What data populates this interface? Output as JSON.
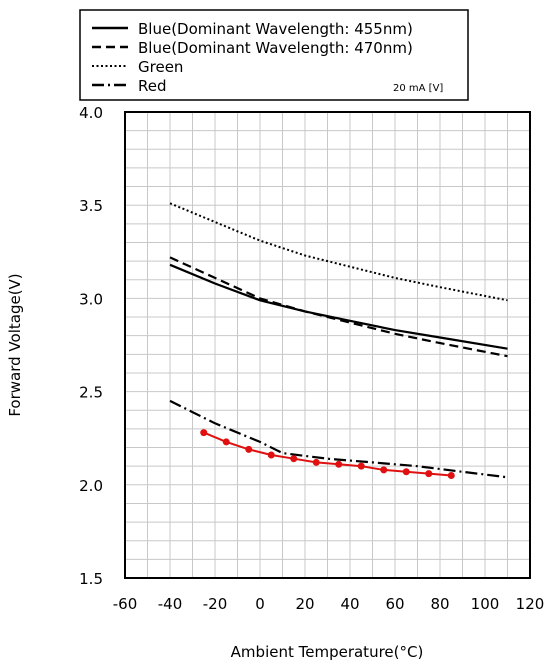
{
  "chart_data": {
    "type": "line",
    "xlabel": "Ambient Temperature(°C)",
    "ylabel": "Forward Voltage(V)",
    "xlim": [
      -60,
      120
    ],
    "ylim": [
      1.5,
      4.0
    ],
    "x_ticks": [
      "-60",
      "-40",
      "-20",
      "0",
      "20",
      "40",
      "60",
      "80",
      "100",
      "120"
    ],
    "y_ticks": [
      "1.5",
      "2.0",
      "2.5",
      "3.0",
      "3.5",
      "4.0"
    ],
    "grid": true,
    "legend_position": "top",
    "legend_note": "20 mA [V]",
    "series": [
      {
        "name": "Blue(Dominant Wavelength: 455nm)",
        "style": "solid",
        "color": "#000000",
        "x": [
          -40,
          -20,
          0,
          20,
          40,
          60,
          80,
          110
        ],
        "y": [
          3.18,
          3.08,
          2.99,
          2.93,
          2.88,
          2.83,
          2.79,
          2.73
        ]
      },
      {
        "name": "Blue(Dominant Wavelength: 470nm)",
        "style": "dashed",
        "color": "#000000",
        "x": [
          -40,
          -20,
          0,
          20,
          40,
          60,
          80,
          110
        ],
        "y": [
          3.22,
          3.11,
          3.0,
          2.93,
          2.87,
          2.81,
          2.76,
          2.69
        ]
      },
      {
        "name": "Green",
        "style": "dotted",
        "color": "#000000",
        "x": [
          -40,
          -20,
          0,
          20,
          40,
          60,
          80,
          110
        ],
        "y": [
          3.51,
          3.41,
          3.31,
          3.23,
          3.17,
          3.11,
          3.06,
          2.99
        ]
      },
      {
        "name": "Red",
        "style": "dashdot",
        "color": "#000000",
        "x": [
          -40,
          -20,
          0,
          10,
          30,
          50,
          70,
          90,
          110
        ],
        "y": [
          2.45,
          2.33,
          2.23,
          2.17,
          2.14,
          2.12,
          2.1,
          2.07,
          2.04
        ]
      },
      {
        "name": "",
        "style": "markers",
        "color": "#e01010",
        "x": [
          -25,
          -15,
          -5,
          5,
          15,
          25,
          35,
          45,
          55,
          65,
          75,
          85
        ],
        "y": [
          2.28,
          2.23,
          2.19,
          2.16,
          2.14,
          2.12,
          2.11,
          2.1,
          2.08,
          2.07,
          2.06,
          2.05
        ]
      }
    ]
  }
}
